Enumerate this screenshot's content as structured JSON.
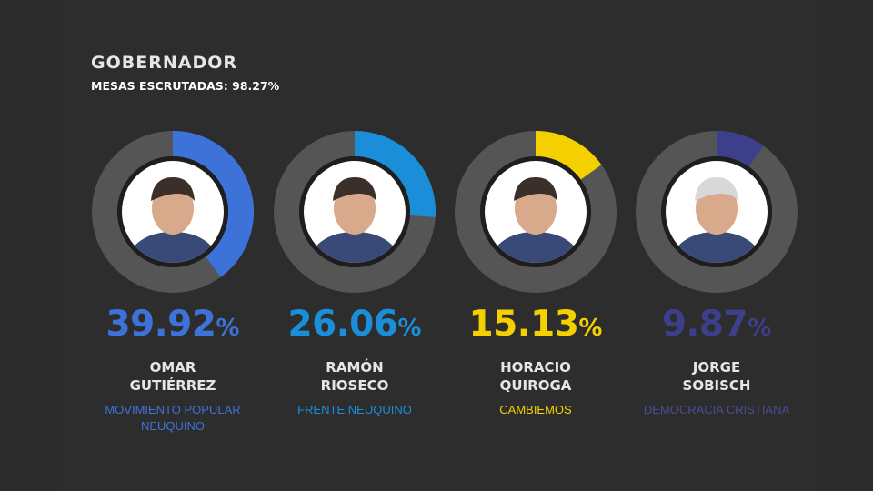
{
  "header": {
    "title": "GOBERNADOR",
    "subtitle": "MESAS ESCRUTADAS: 98.27%"
  },
  "chart_data": {
    "type": "donut",
    "unit": "%",
    "categories": [
      "OMAR GUTIÉRREZ",
      "RAMÓN RIOSECO",
      "HORACIO QUIROGA",
      "JORGE SOBISCH"
    ],
    "values": [
      39.92,
      26.06,
      15.13,
      9.87
    ],
    "candidates": [
      {
        "value": 39.92,
        "value_label": "39.92",
        "first_name": "OMAR",
        "last_name": "GUTIÉRREZ",
        "party_line1": "MOVIMIENTO POPULAR",
        "party_line2": "NEUQUINO",
        "color": "#3d72d9",
        "party_color": "#3d72d9"
      },
      {
        "value": 26.06,
        "value_label": "26.06",
        "first_name": "RAMÓN",
        "last_name": "RIOSECO",
        "party_line1": "FRENTE NEUQUINO",
        "party_line2": "",
        "color": "#1a8ed8",
        "party_color": "#1a8ed8"
      },
      {
        "value": 15.13,
        "value_label": "15.13",
        "first_name": "HORACIO",
        "last_name": "QUIROGA",
        "party_line1": "CAMBIEMOS",
        "party_line2": "",
        "color": "#f5d000",
        "party_color": "#f5d000"
      },
      {
        "value": 9.87,
        "value_label": "9.87",
        "first_name": "JORGE",
        "last_name": "SOBISCH",
        "party_line1": "DEMOCRACIA CRISTIANA",
        "party_line2": "",
        "color": "#3d3f8a",
        "party_color": "#4a4d94"
      }
    ],
    "percent_sign": "%",
    "ring_track_color": "#555555",
    "photo_background": "#ffffff"
  }
}
